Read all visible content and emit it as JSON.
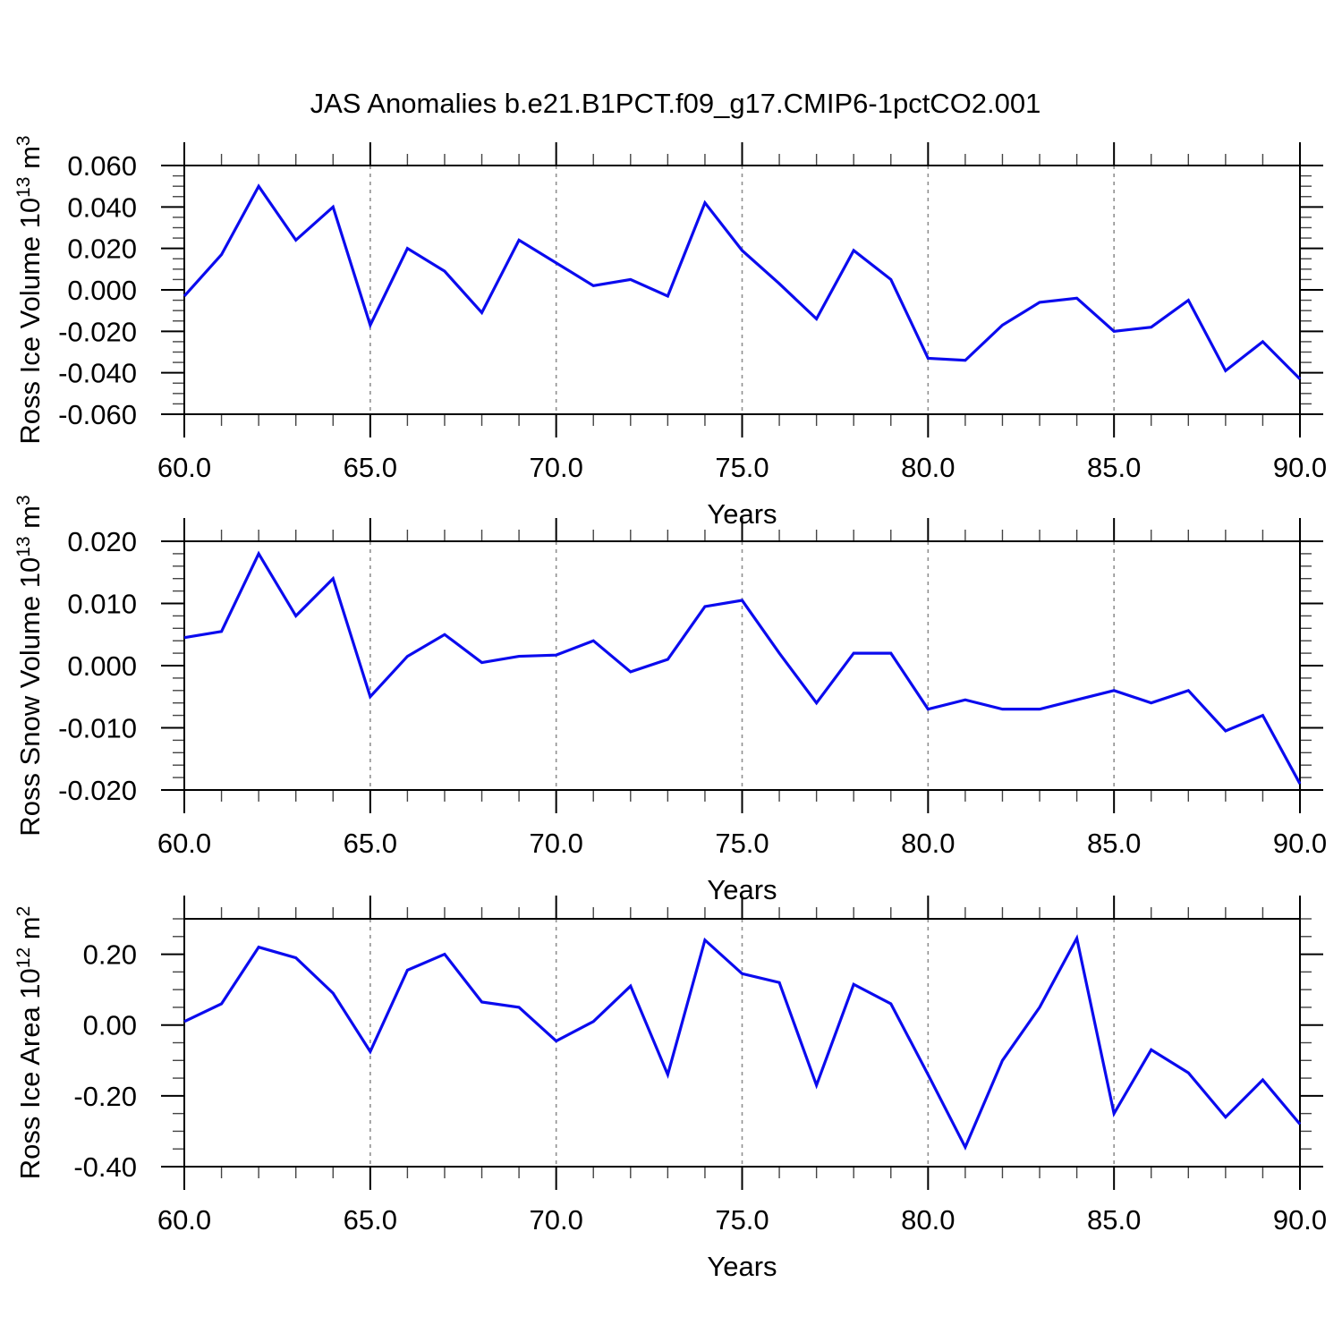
{
  "title": "JAS Anomalies b.e21.B1PCT.f09_g17.CMIP6-1pctCO2.001",
  "line_color": "#0b0bee",
  "grid_color": "#909090",
  "axis_color": "#000000",
  "chart_data": [
    {
      "type": "line",
      "ylabel": "Ross Ice Volume 10¹³ m³",
      "ylabel_parts": [
        {
          "text": "Ross Ice Volume 10"
        },
        {
          "text": "13",
          "sup": true
        },
        {
          "text": " m"
        },
        {
          "text": "3",
          "sup": true
        }
      ],
      "xlabel": "Years",
      "ylim": [
        -0.06,
        0.06
      ],
      "yticks": [
        0.06,
        0.04,
        0.02,
        0,
        -0.02,
        -0.04,
        -0.06
      ],
      "ytick_labels": [
        "0.060",
        "0.040",
        "0.020",
        "0.000",
        "-0.020",
        "-0.040",
        "-0.060"
      ],
      "y_minor_step": 0.005,
      "xlim": [
        60,
        90
      ],
      "xticks": [
        60,
        65,
        70,
        75,
        80,
        85,
        90
      ],
      "xtick_labels": [
        "60.0",
        "65.0",
        "70.0",
        "75.0",
        "80.0",
        "85.0",
        "90.0"
      ],
      "x_minor_step": 1,
      "gridlines_x": [
        65,
        70,
        75,
        80,
        85
      ],
      "grid_style": "dashed",
      "legend": "none",
      "x": [
        60,
        61,
        62,
        63,
        64,
        65,
        66,
        67,
        68,
        69,
        70,
        71,
        72,
        73,
        74,
        75,
        76,
        77,
        78,
        79,
        80,
        81,
        82,
        83,
        84,
        85,
        86,
        87,
        88,
        89,
        90
      ],
      "values": [
        -0.003,
        0.017,
        0.05,
        0.024,
        0.04,
        -0.017,
        0.02,
        0.009,
        -0.011,
        0.024,
        0.013,
        0.002,
        0.005,
        -0.003,
        0.042,
        0.019,
        0.003,
        -0.014,
        0.019,
        0.005,
        -0.033,
        -0.034,
        -0.017,
        -0.006,
        -0.004,
        -0.02,
        -0.018,
        -0.005,
        -0.039,
        -0.025,
        -0.043
      ]
    },
    {
      "type": "line",
      "ylabel": "Ross Snow Volume 10¹³ m³",
      "ylabel_parts": [
        {
          "text": "Ross Snow Volume 10"
        },
        {
          "text": "13",
          "sup": true
        },
        {
          "text": " m"
        },
        {
          "text": "3",
          "sup": true
        }
      ],
      "xlabel": "Years",
      "ylim": [
        -0.02,
        0.02
      ],
      "yticks": [
        0.02,
        0.01,
        0,
        -0.01,
        -0.02
      ],
      "ytick_labels": [
        "0.020",
        "0.010",
        "0.000",
        "-0.010",
        "-0.020"
      ],
      "y_minor_step": 0.002,
      "xlim": [
        60,
        90
      ],
      "xticks": [
        60,
        65,
        70,
        75,
        80,
        85,
        90
      ],
      "xtick_labels": [
        "60.0",
        "65.0",
        "70.0",
        "75.0",
        "80.0",
        "85.0",
        "90.0"
      ],
      "x_minor_step": 1,
      "gridlines_x": [
        65,
        70,
        75,
        80,
        85
      ],
      "grid_style": "dashed",
      "legend": "none",
      "x": [
        60,
        61,
        62,
        63,
        64,
        65,
        66,
        67,
        68,
        69,
        70,
        71,
        72,
        73,
        74,
        75,
        76,
        77,
        78,
        79,
        80,
        81,
        82,
        83,
        84,
        85,
        86,
        87,
        88,
        89,
        90
      ],
      "values": [
        0.0045,
        0.0055,
        0.018,
        0.008,
        0.014,
        -0.005,
        0.0015,
        0.005,
        0.0005,
        0.0015,
        0.0017,
        0.004,
        -0.001,
        0.001,
        0.0095,
        0.0105,
        0.002,
        -0.006,
        0.002,
        0.002,
        -0.007,
        -0.0055,
        -0.007,
        -0.007,
        -0.0055,
        -0.004,
        -0.006,
        -0.004,
        -0.0105,
        -0.008,
        -0.019
      ]
    },
    {
      "type": "line",
      "ylabel": "Ross Ice Area 10¹² m²",
      "ylabel_parts": [
        {
          "text": "Ross Ice Area 10"
        },
        {
          "text": "12",
          "sup": true
        },
        {
          "text": " m"
        },
        {
          "text": "2",
          "sup": true
        }
      ],
      "xlabel": "Years",
      "ylim": [
        -0.4,
        0.3
      ],
      "yticks": [
        0.2,
        0.0,
        -0.2,
        -0.4
      ],
      "ytick_labels": [
        "0.20",
        "0.00",
        "-0.20",
        "-0.40"
      ],
      "y_minor_step": 0.05,
      "xlim": [
        60,
        90
      ],
      "xticks": [
        60,
        65,
        70,
        75,
        80,
        85,
        90
      ],
      "xtick_labels": [
        "60.0",
        "65.0",
        "70.0",
        "75.0",
        "80.0",
        "85.0",
        "90.0"
      ],
      "x_minor_step": 1,
      "gridlines_x": [
        65,
        70,
        75,
        80,
        85
      ],
      "grid_style": "dashed",
      "legend": "none",
      "x": [
        60,
        61,
        62,
        63,
        64,
        65,
        66,
        67,
        68,
        69,
        70,
        71,
        72,
        73,
        74,
        75,
        76,
        77,
        78,
        79,
        80,
        81,
        82,
        83,
        84,
        85,
        86,
        87,
        88,
        89,
        90
      ],
      "values": [
        0.01,
        0.06,
        0.22,
        0.19,
        0.09,
        -0.075,
        0.155,
        0.2,
        0.065,
        0.05,
        -0.045,
        0.01,
        0.11,
        -0.14,
        0.24,
        0.145,
        0.12,
        -0.17,
        0.115,
        0.06,
        -0.14,
        -0.345,
        -0.1,
        0.05,
        0.245,
        -0.25,
        -0.07,
        -0.135,
        -0.26,
        -0.155,
        -0.28
      ]
    }
  ]
}
